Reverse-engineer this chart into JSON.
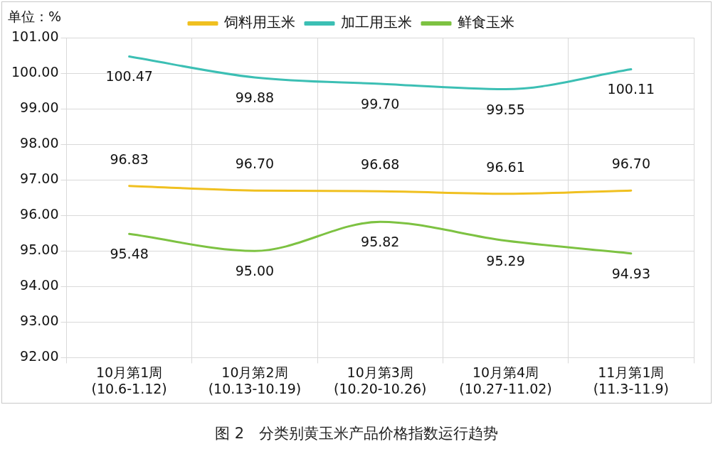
{
  "chart_data": {
    "type": "line",
    "categories": [
      "10月第1周\n(10.6-1.12)",
      "10月第2周\n(10.13-10.19)",
      "10月第3周\n(10.20-10.26)",
      "10月第4周\n(10.27-11.02)",
      "11月第1周\n(11.3-11.9)"
    ],
    "series": [
      {
        "name": "饲料用玉米",
        "color": "#f0c020",
        "values": [
          96.83,
          96.7,
          96.68,
          96.61,
          96.7
        ],
        "value_labels": [
          "96.83",
          "96.70",
          "96.68",
          "96.61",
          "96.70"
        ]
      },
      {
        "name": "加工用玉米",
        "color": "#3cbfb4",
        "values": [
          100.47,
          99.88,
          99.7,
          99.55,
          100.11
        ],
        "value_labels": [
          "100.47",
          "99.88",
          "99.70",
          "99.55",
          "100.11"
        ]
      },
      {
        "name": "鲜食玉米",
        "color": "#7dc242",
        "values": [
          95.48,
          95.0,
          95.82,
          95.29,
          94.93
        ],
        "value_labels": [
          "95.48",
          "95.00",
          "95.82",
          "95.29",
          "94.93"
        ]
      }
    ],
    "ylim": [
      92,
      101
    ],
    "yticks": [
      {
        "value": 92,
        "label": "92.00"
      },
      {
        "value": 93,
        "label": "93.00"
      },
      {
        "value": 94,
        "label": "94.00"
      },
      {
        "value": 95,
        "label": "95.00"
      },
      {
        "value": 96,
        "label": "96.00"
      },
      {
        "value": 97,
        "label": "97.00"
      },
      {
        "value": 98,
        "label": "98.00"
      },
      {
        "value": 99,
        "label": "99.00"
      },
      {
        "value": 100,
        "label": "100.00"
      },
      {
        "value": 101,
        "label": "101.00"
      }
    ],
    "grid": true,
    "legend": "top",
    "marker": "none",
    "line_style": "solid",
    "annotations": [
      "单位：%",
      "图 2　分类别黄玉米产品价格指数运行趋势"
    ]
  }
}
